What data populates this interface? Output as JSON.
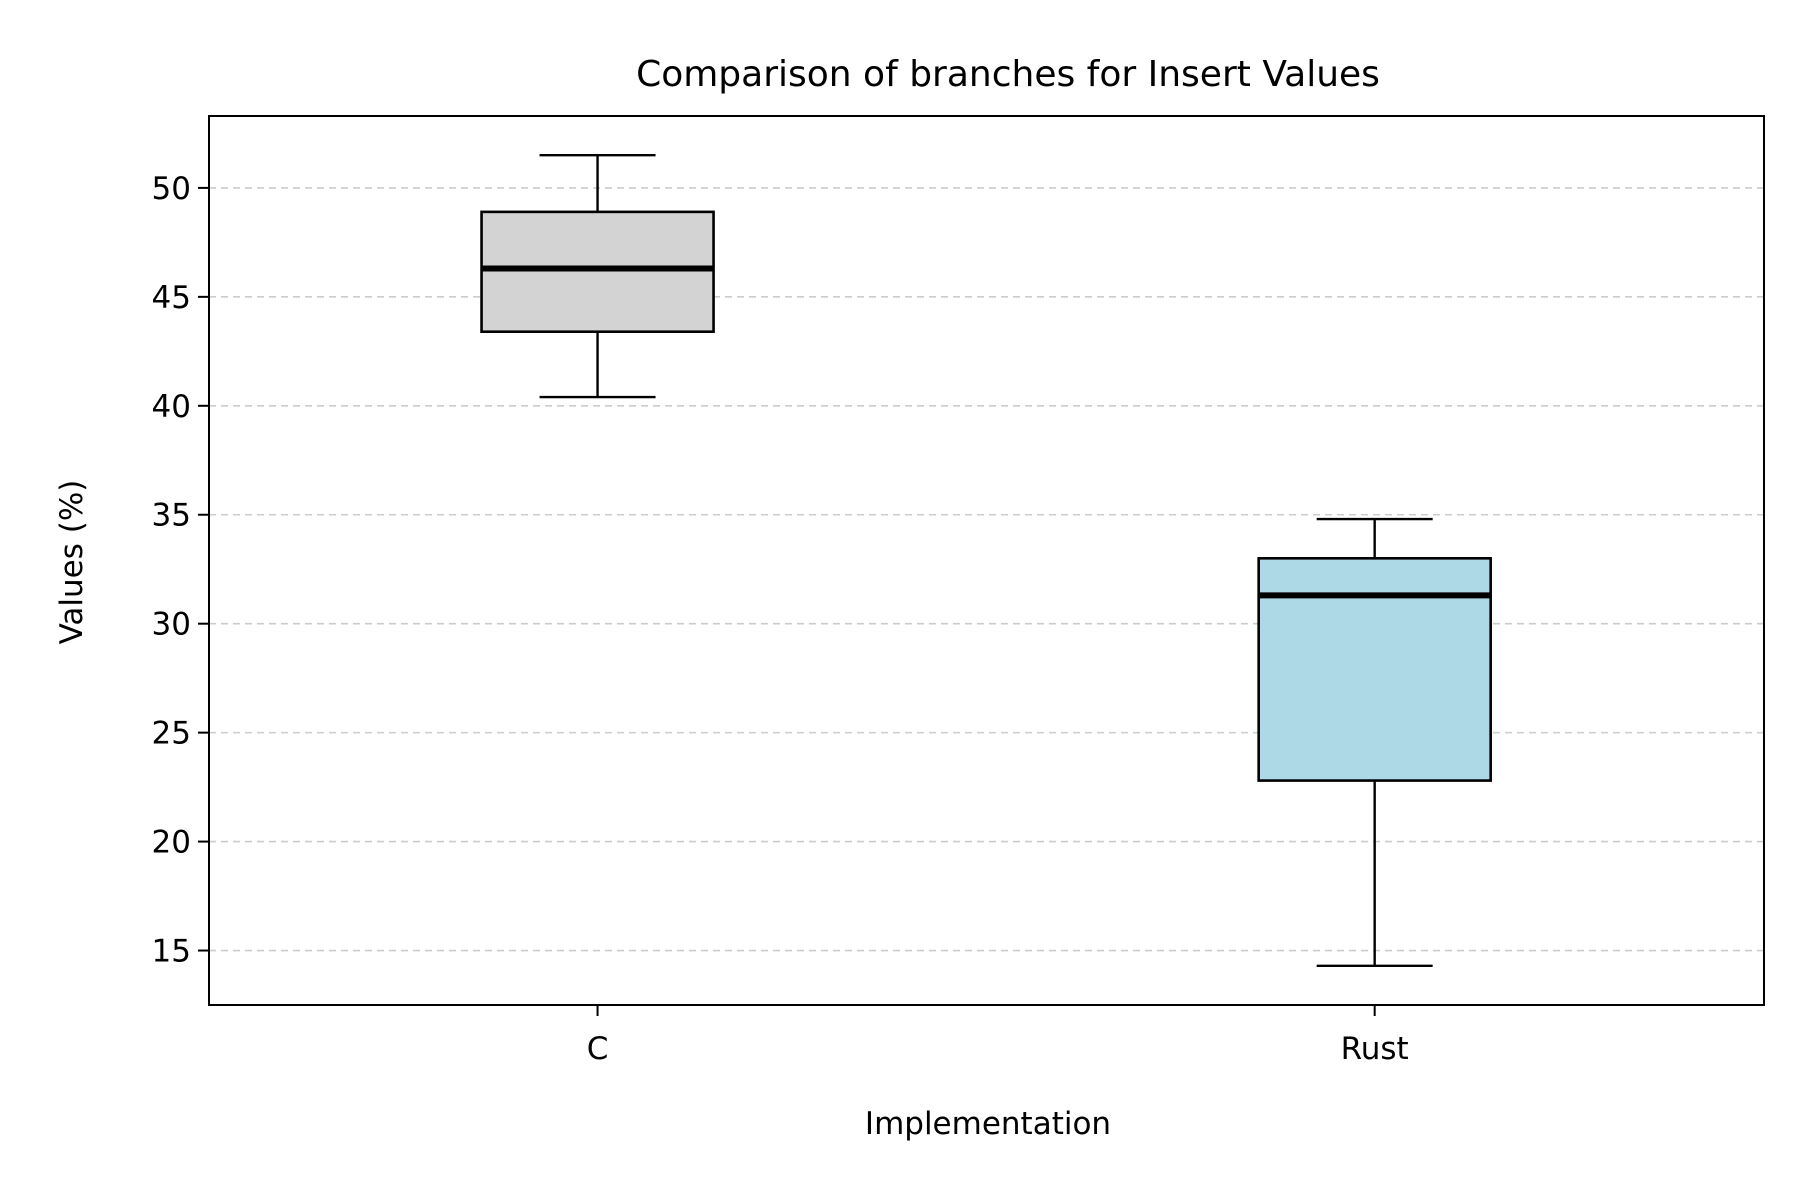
{
  "chart_data": {
    "type": "box",
    "title": "Comparison of branches for Insert Values",
    "xlabel": "Implementation",
    "ylabel": "Values (%)",
    "categories": [
      "C",
      "Rust"
    ],
    "boxes": [
      {
        "category": "C",
        "whisker_low": 40.4,
        "q1": 43.4,
        "median": 46.3,
        "q3": 48.9,
        "whisker_high": 51.5,
        "color": "#d3d3d3"
      },
      {
        "category": "Rust",
        "whisker_low": 14.3,
        "q1": 22.8,
        "median": 31.3,
        "q3": 33.0,
        "whisker_high": 34.8,
        "color": "#add8e6"
      }
    ],
    "ylim": [
      12.5,
      53.3
    ],
    "yticks": [
      15,
      20,
      25,
      30,
      35,
      40,
      45,
      50
    ],
    "grid": {
      "axis": "y",
      "style": "dashed",
      "color": "#cccccc"
    },
    "median_color": "#000000"
  }
}
